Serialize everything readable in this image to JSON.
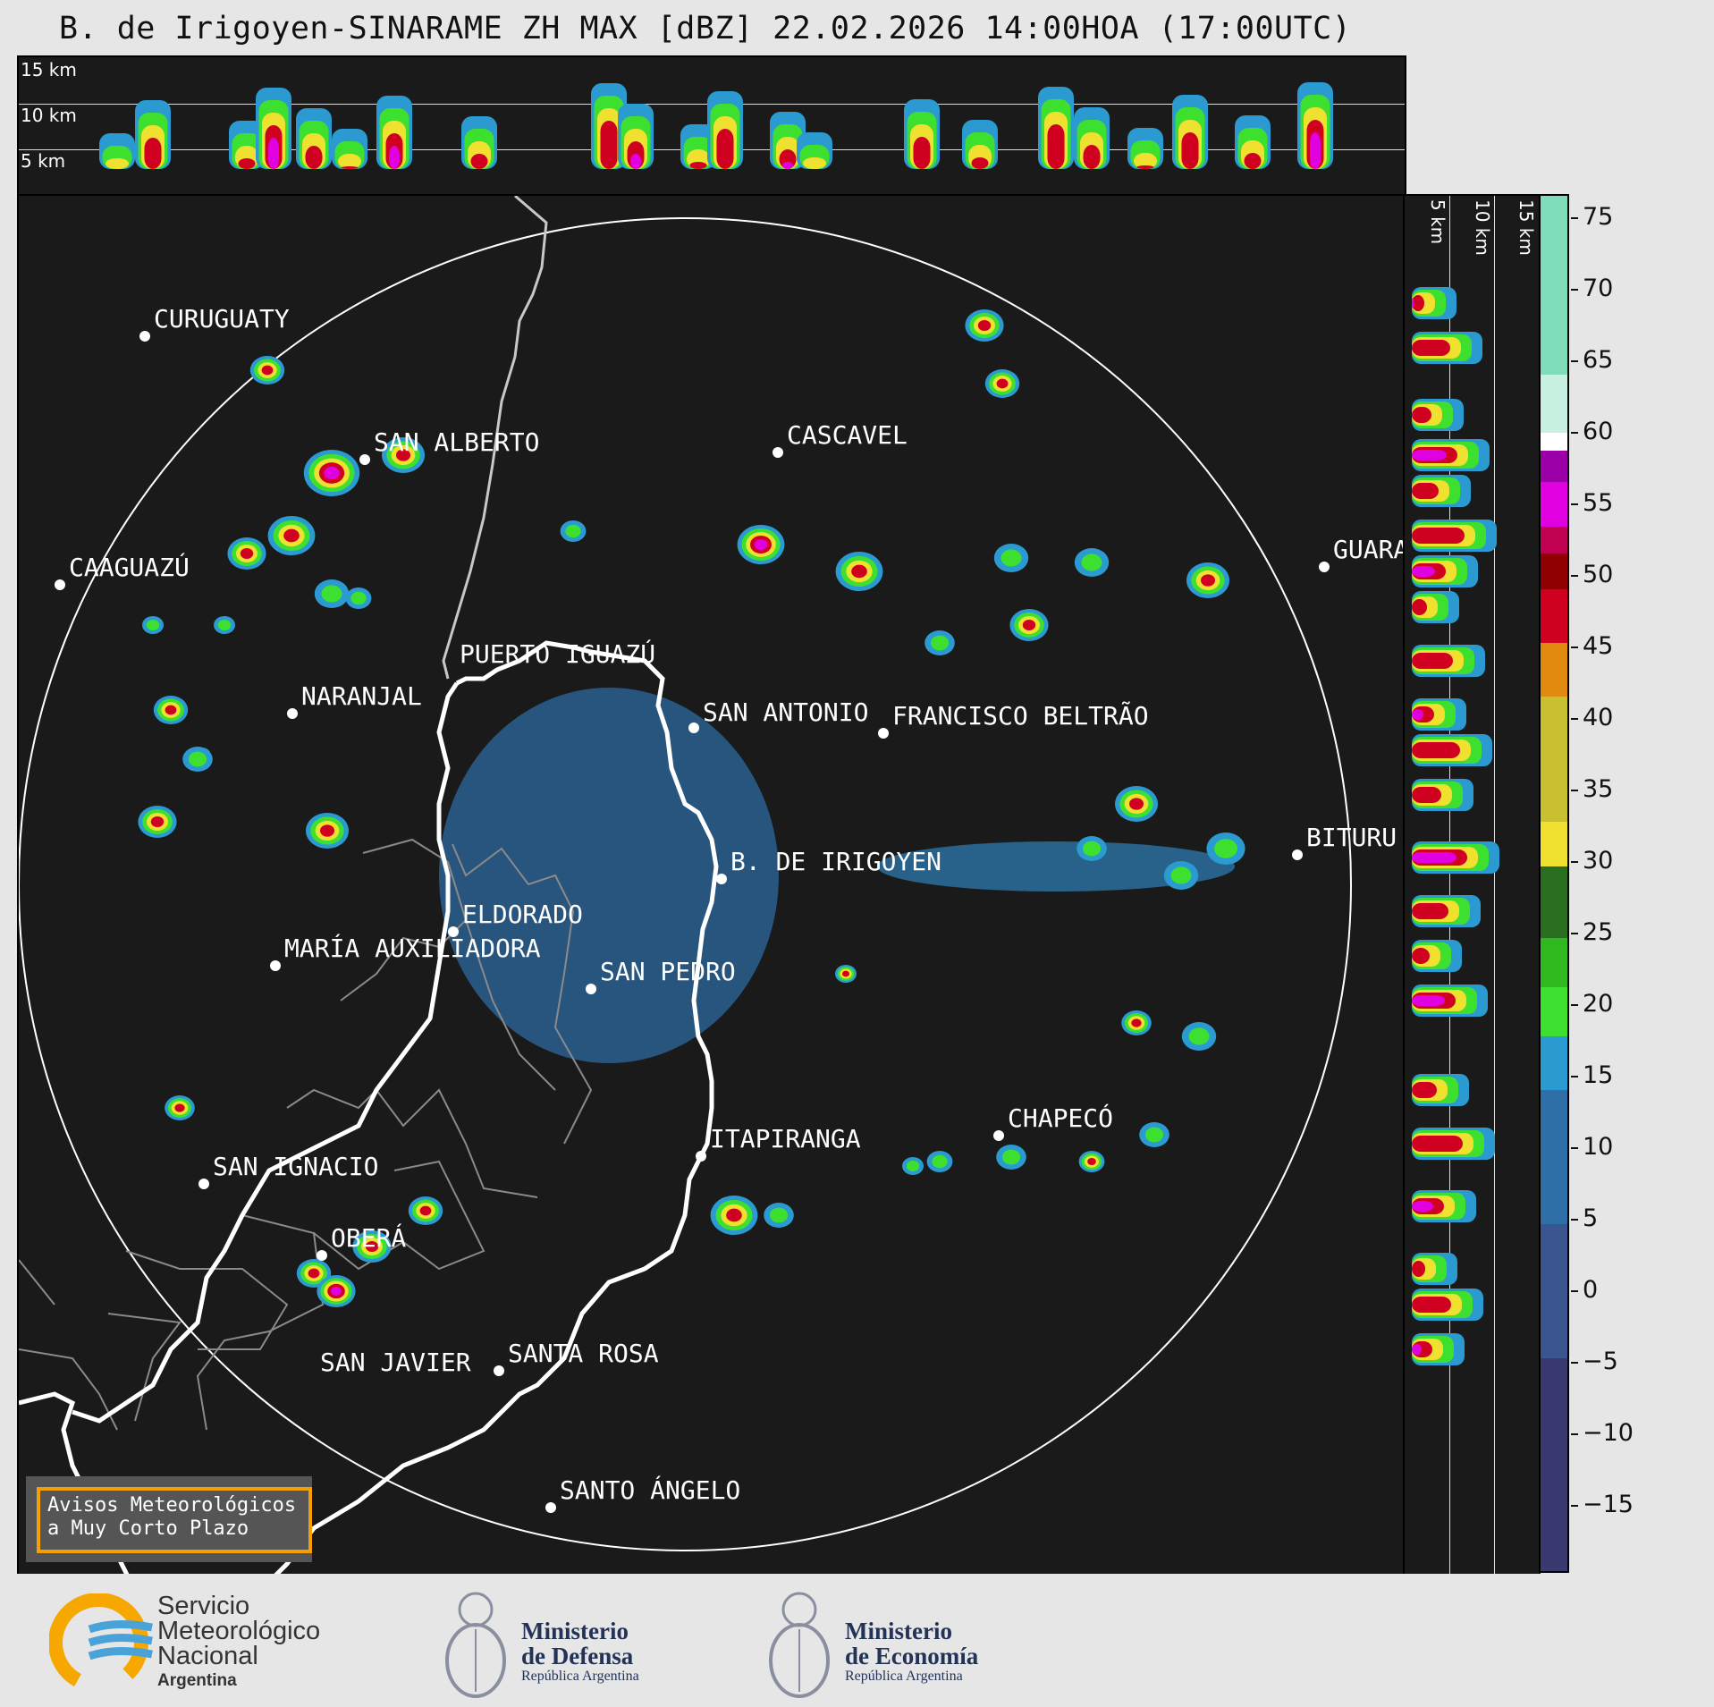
{
  "title": "B. de Irigoyen-SINARAME ZH MAX [dBZ] 22.02.2026 14:00HOA (17:00UTC)",
  "top_panel": {
    "alt_labels": [
      "15 km",
      "10 km",
      "5 km"
    ]
  },
  "side_panel": {
    "alt_labels": [
      "5 km",
      "10 km",
      "15 km"
    ]
  },
  "cities": [
    {
      "name": "CURUGUATY"
    },
    {
      "name": "SAN ALBERTO"
    },
    {
      "name": "CASCAVEL"
    },
    {
      "name": "CAAGUAZÚ"
    },
    {
      "name": "GUARA"
    },
    {
      "name": "PUERTO IGUAZÚ"
    },
    {
      "name": "NARANJAL"
    },
    {
      "name": "SAN ANTONIO"
    },
    {
      "name": "FRANCISCO BELTRÃO"
    },
    {
      "name": "BITURU"
    },
    {
      "name": "B. DE IRIGOYEN"
    },
    {
      "name": "ELDORADO"
    },
    {
      "name": "MARÍA AUXILIADORA"
    },
    {
      "name": "SAN PEDRO"
    },
    {
      "name": "CHAPECÓ"
    },
    {
      "name": "ITAPIRANGA"
    },
    {
      "name": "SAN IGNACIO"
    },
    {
      "name": "OBERÁ"
    },
    {
      "name": "SAN JAVIER"
    },
    {
      "name": "SANTA ROSA"
    },
    {
      "name": "SANTO ÁNGELO"
    }
  ],
  "warning_box": {
    "line1": "Avisos Meteorológicos",
    "line2": "a Muy Corto Plazo"
  },
  "colorbar": {
    "ticks": [
      "75",
      "70",
      "65",
      "60",
      "55",
      "50",
      "45",
      "40",
      "35",
      "30",
      "25",
      "20",
      "15",
      "10",
      "5",
      "0",
      "−5",
      "−10",
      "−15"
    ],
    "colors": {
      "teal": "#7fdcb8",
      "white": "#ffffff",
      "purple": "#9b00a8",
      "magenta": "#e000e0",
      "red": "#d00020",
      "darkred": "#900000",
      "orange": "#e08a10",
      "yellow": "#f0e030",
      "darkgreen": "#2a6e20",
      "green": "#3ee030",
      "blue": "#2a9ad0",
      "slate": "#3a4a80"
    }
  },
  "footer": {
    "smn": {
      "line1": "Servicio",
      "line2": "Meteorológico",
      "line3": "Nacional",
      "line4": "Argentina"
    },
    "defensa": {
      "line1": "Ministerio",
      "line2": "de Defensa",
      "line3": "República Argentina"
    },
    "economia": {
      "line1": "Ministerio",
      "line2": "de Economía",
      "line3": "República Argentina"
    }
  }
}
